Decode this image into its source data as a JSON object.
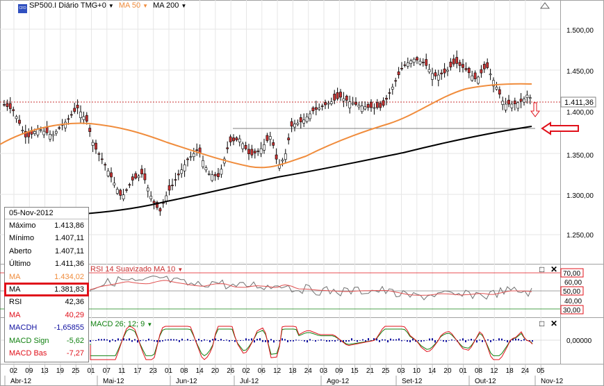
{
  "header": {
    "symbol": "SP500.I Diário TMG+0",
    "ma1_label": "MA 50",
    "ma2_label": "MA 200",
    "dropdown_glyph": "▼",
    "logo_text": "CFD"
  },
  "price_axis": {
    "ticks": [
      "1.500,00",
      "1.450,00",
      "1.400,00",
      "1.350,00",
      "1.300,00",
      "1.250,00"
    ],
    "last_price": "1.411,36"
  },
  "rsi_panel": {
    "title": "RSI 14 Suavizado MA 10",
    "ticks": [
      "70,00",
      "60,00",
      "50,00",
      "40,00",
      "30,00"
    ]
  },
  "macd_panel": {
    "title": "MACD 26; 12; 9",
    "tick": "0,00000"
  },
  "time_axis": {
    "days": [
      "02",
      "09",
      "13",
      "19",
      "25",
      "01",
      "07",
      "11",
      "17",
      "23",
      "01",
      "08",
      "14",
      "20",
      "26",
      "02",
      "06",
      "12",
      "18",
      "24",
      "03",
      "09",
      "15",
      "21",
      "25",
      "03",
      "10",
      "14",
      "20",
      "01",
      "08",
      "12",
      "18",
      "24",
      "05"
    ],
    "months": [
      "Abr-12",
      "Mai-12",
      "Jun-12",
      "Jul-12",
      "Ago-12",
      "Set-12",
      "Out-12",
      "Nov-12"
    ]
  },
  "info_box": {
    "date": "05-Nov-2012",
    "rows": [
      {
        "label": "Máximo",
        "value": "1.413,86",
        "color": "#000000"
      },
      {
        "label": "Mínimo",
        "value": "1.407,11",
        "color": "#000000"
      },
      {
        "label": "Aberto",
        "value": "1.407,11",
        "color": "#000000"
      },
      {
        "label": "Último",
        "value": "1.411,36",
        "color": "#000000"
      },
      {
        "label": "MA",
        "value": "1.434,02",
        "color": "#f08c3c"
      },
      {
        "label": "MA",
        "value": "1.381,83",
        "color": "#000000"
      },
      {
        "label": "RSI",
        "value": "42,36",
        "color": "#000000"
      },
      {
        "label": "MA",
        "value": "40,29",
        "color": "#e0101a"
      },
      {
        "label": "MACDH",
        "value": "-1,65855",
        "color": "#1010a0"
      },
      {
        "label": "MACD Sign",
        "value": "-5,62",
        "color": "#108010"
      },
      {
        "label": "MACD Bas",
        "value": "-7,27",
        "color": "#e0101a"
      }
    ]
  },
  "colors": {
    "ma50": "#f08c3c",
    "ma200": "#000000",
    "up": "#ffffff",
    "down": "#c83232",
    "rsi": "#707070",
    "rsi_ma": "#e05050",
    "macdh": "#1010a0",
    "signal": "#108010",
    "base": "#e0101a"
  }
}
